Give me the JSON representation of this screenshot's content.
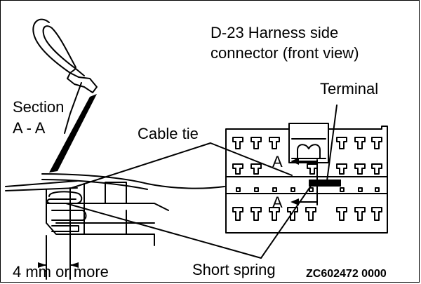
{
  "title": {
    "line1": "D-23 Harness side",
    "line2": "connector (front view)"
  },
  "labels": {
    "terminal": "Terminal",
    "section_line1": "Section",
    "section_line2": "A - A",
    "cable_tie": "Cable tie",
    "section_marker_top": "A",
    "section_marker_bottom": "A",
    "dimension": "4 mm or more",
    "short_spring": "Short spring"
  },
  "diagram_code": "ZC602472 0000"
}
